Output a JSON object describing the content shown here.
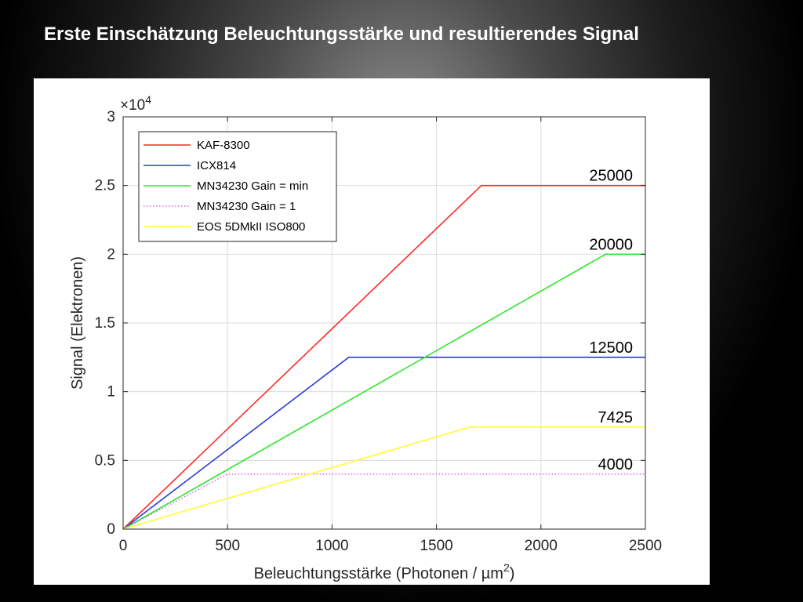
{
  "slide": {
    "title": "Erste Einschätzung Beleuchtungsstärke und resultierendes Signal"
  },
  "chart_data": {
    "type": "line",
    "xlabel": "Beleuchtungsstärke (Photonen / µm",
    "xlabel_superscript": "2",
    "xlabel_suffix": ")",
    "ylabel": "Signal (Elektronen)",
    "y_multiplier_text": "×10",
    "y_multiplier_exponent": "4",
    "xlim": [
      0,
      2500
    ],
    "ylim": [
      0,
      30000
    ],
    "xticks": [
      0,
      500,
      1000,
      1500,
      2000,
      2500
    ],
    "yticks": [
      0,
      5000,
      10000,
      15000,
      20000,
      25000,
      30000
    ],
    "ytick_labels": [
      "0",
      "0.5",
      "1",
      "1.5",
      "2",
      "2.5",
      "3"
    ],
    "grid": true,
    "legend_position": "top-left",
    "series": [
      {
        "name": "KAF-8300",
        "color": "#ff2a2a",
        "style": "solid",
        "x": [
          0,
          1715,
          2500
        ],
        "y": [
          0,
          25000,
          25000
        ]
      },
      {
        "name": "ICX814",
        "color": "#2a3bd6",
        "style": "solid",
        "x": [
          0,
          1080,
          2500
        ],
        "y": [
          0,
          12500,
          12500
        ]
      },
      {
        "name": "MN34230 Gain = min",
        "color": "#2ee62e",
        "style": "solid",
        "x": [
          0,
          2310,
          2500
        ],
        "y": [
          0,
          20000,
          20000
        ]
      },
      {
        "name": "MN34230 Gain = 1",
        "color": "#e23ae2",
        "style": "dotted",
        "x": [
          0,
          500,
          2500
        ],
        "y": [
          0,
          4000,
          4000
        ]
      },
      {
        "name": "EOS 5DMkII ISO800",
        "color": "#ffff33",
        "style": "solid",
        "x": [
          0,
          1660,
          2500
        ],
        "y": [
          0,
          7425,
          7425
        ]
      }
    ],
    "annotations": [
      {
        "text": "25000",
        "value": 25000
      },
      {
        "text": "20000",
        "value": 20000
      },
      {
        "text": "12500",
        "value": 12500
      },
      {
        "text": "7425",
        "value": 7425
      },
      {
        "text": "4000",
        "value": 4000
      }
    ]
  }
}
